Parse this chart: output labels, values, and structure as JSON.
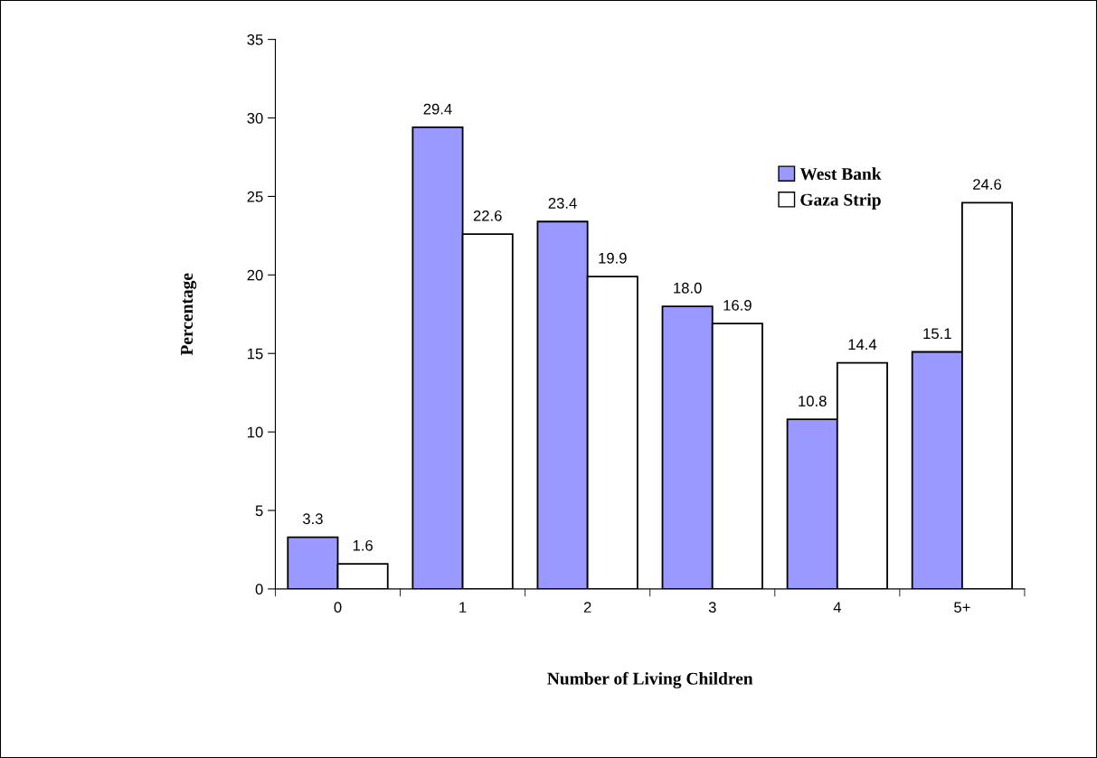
{
  "chart_data": {
    "type": "bar",
    "xlabel": "Number of Living Children",
    "ylabel": "Percentage",
    "categories": [
      "0",
      "1",
      "2",
      "3",
      "4",
      "5+"
    ],
    "series": [
      {
        "name": "West Bank",
        "color": "#9999ff",
        "values": [
          3.3,
          29.4,
          23.4,
          18.0,
          10.8,
          15.1
        ],
        "value_labels": [
          "3.3",
          "29.4",
          "23.4",
          "18.0",
          "10.8",
          "15.1"
        ]
      },
      {
        "name": "Gaza Strip",
        "color": "#ffffff",
        "values": [
          1.6,
          22.6,
          19.9,
          16.9,
          14.4,
          24.6
        ],
        "value_labels": [
          "1.6",
          "22.6",
          "19.9",
          "16.9",
          "14.4",
          "24.6"
        ]
      }
    ],
    "ylim": [
      0,
      35
    ],
    "yticks": [
      0,
      5,
      10,
      15,
      20,
      25,
      30,
      35
    ],
    "grid": false,
    "legend": "right"
  }
}
